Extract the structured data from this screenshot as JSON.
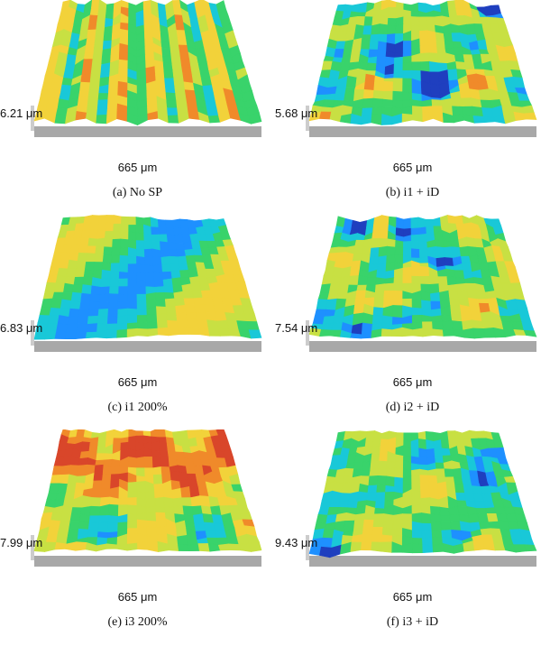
{
  "panels": [
    {
      "id": "a",
      "caption": "(a) No SP",
      "height_label": "6.21 μm",
      "width_label": "665 μm",
      "style": "striped"
    },
    {
      "id": "b",
      "caption": "(b) i1 + iD",
      "height_label": "5.68 μm",
      "width_label": "665 μm",
      "style": "dimpled"
    },
    {
      "id": "c",
      "caption": "(c) i1 200%",
      "height_label": "6.83 μm",
      "width_label": "665 μm",
      "style": "smooth"
    },
    {
      "id": "d",
      "caption": "(d) i2 + iD",
      "height_label": "7.54 μm",
      "width_label": "665 μm",
      "style": "dimpled"
    },
    {
      "id": "e",
      "caption": "(e) i3 200%",
      "height_label": "7.99 μm",
      "width_label": "665 μm",
      "style": "hot"
    },
    {
      "id": "f",
      "caption": "(f) i3 + iD",
      "height_label": "9.43 μm",
      "width_label": "665 μm",
      "style": "rough"
    }
  ],
  "colors": {
    "base_plate": "#a8a8a8",
    "scale": [
      "#1f3fbf",
      "#1e90ff",
      "#19c8d8",
      "#39d36b",
      "#c8e043",
      "#f2d23a",
      "#f08a2a",
      "#d9462a"
    ]
  }
}
